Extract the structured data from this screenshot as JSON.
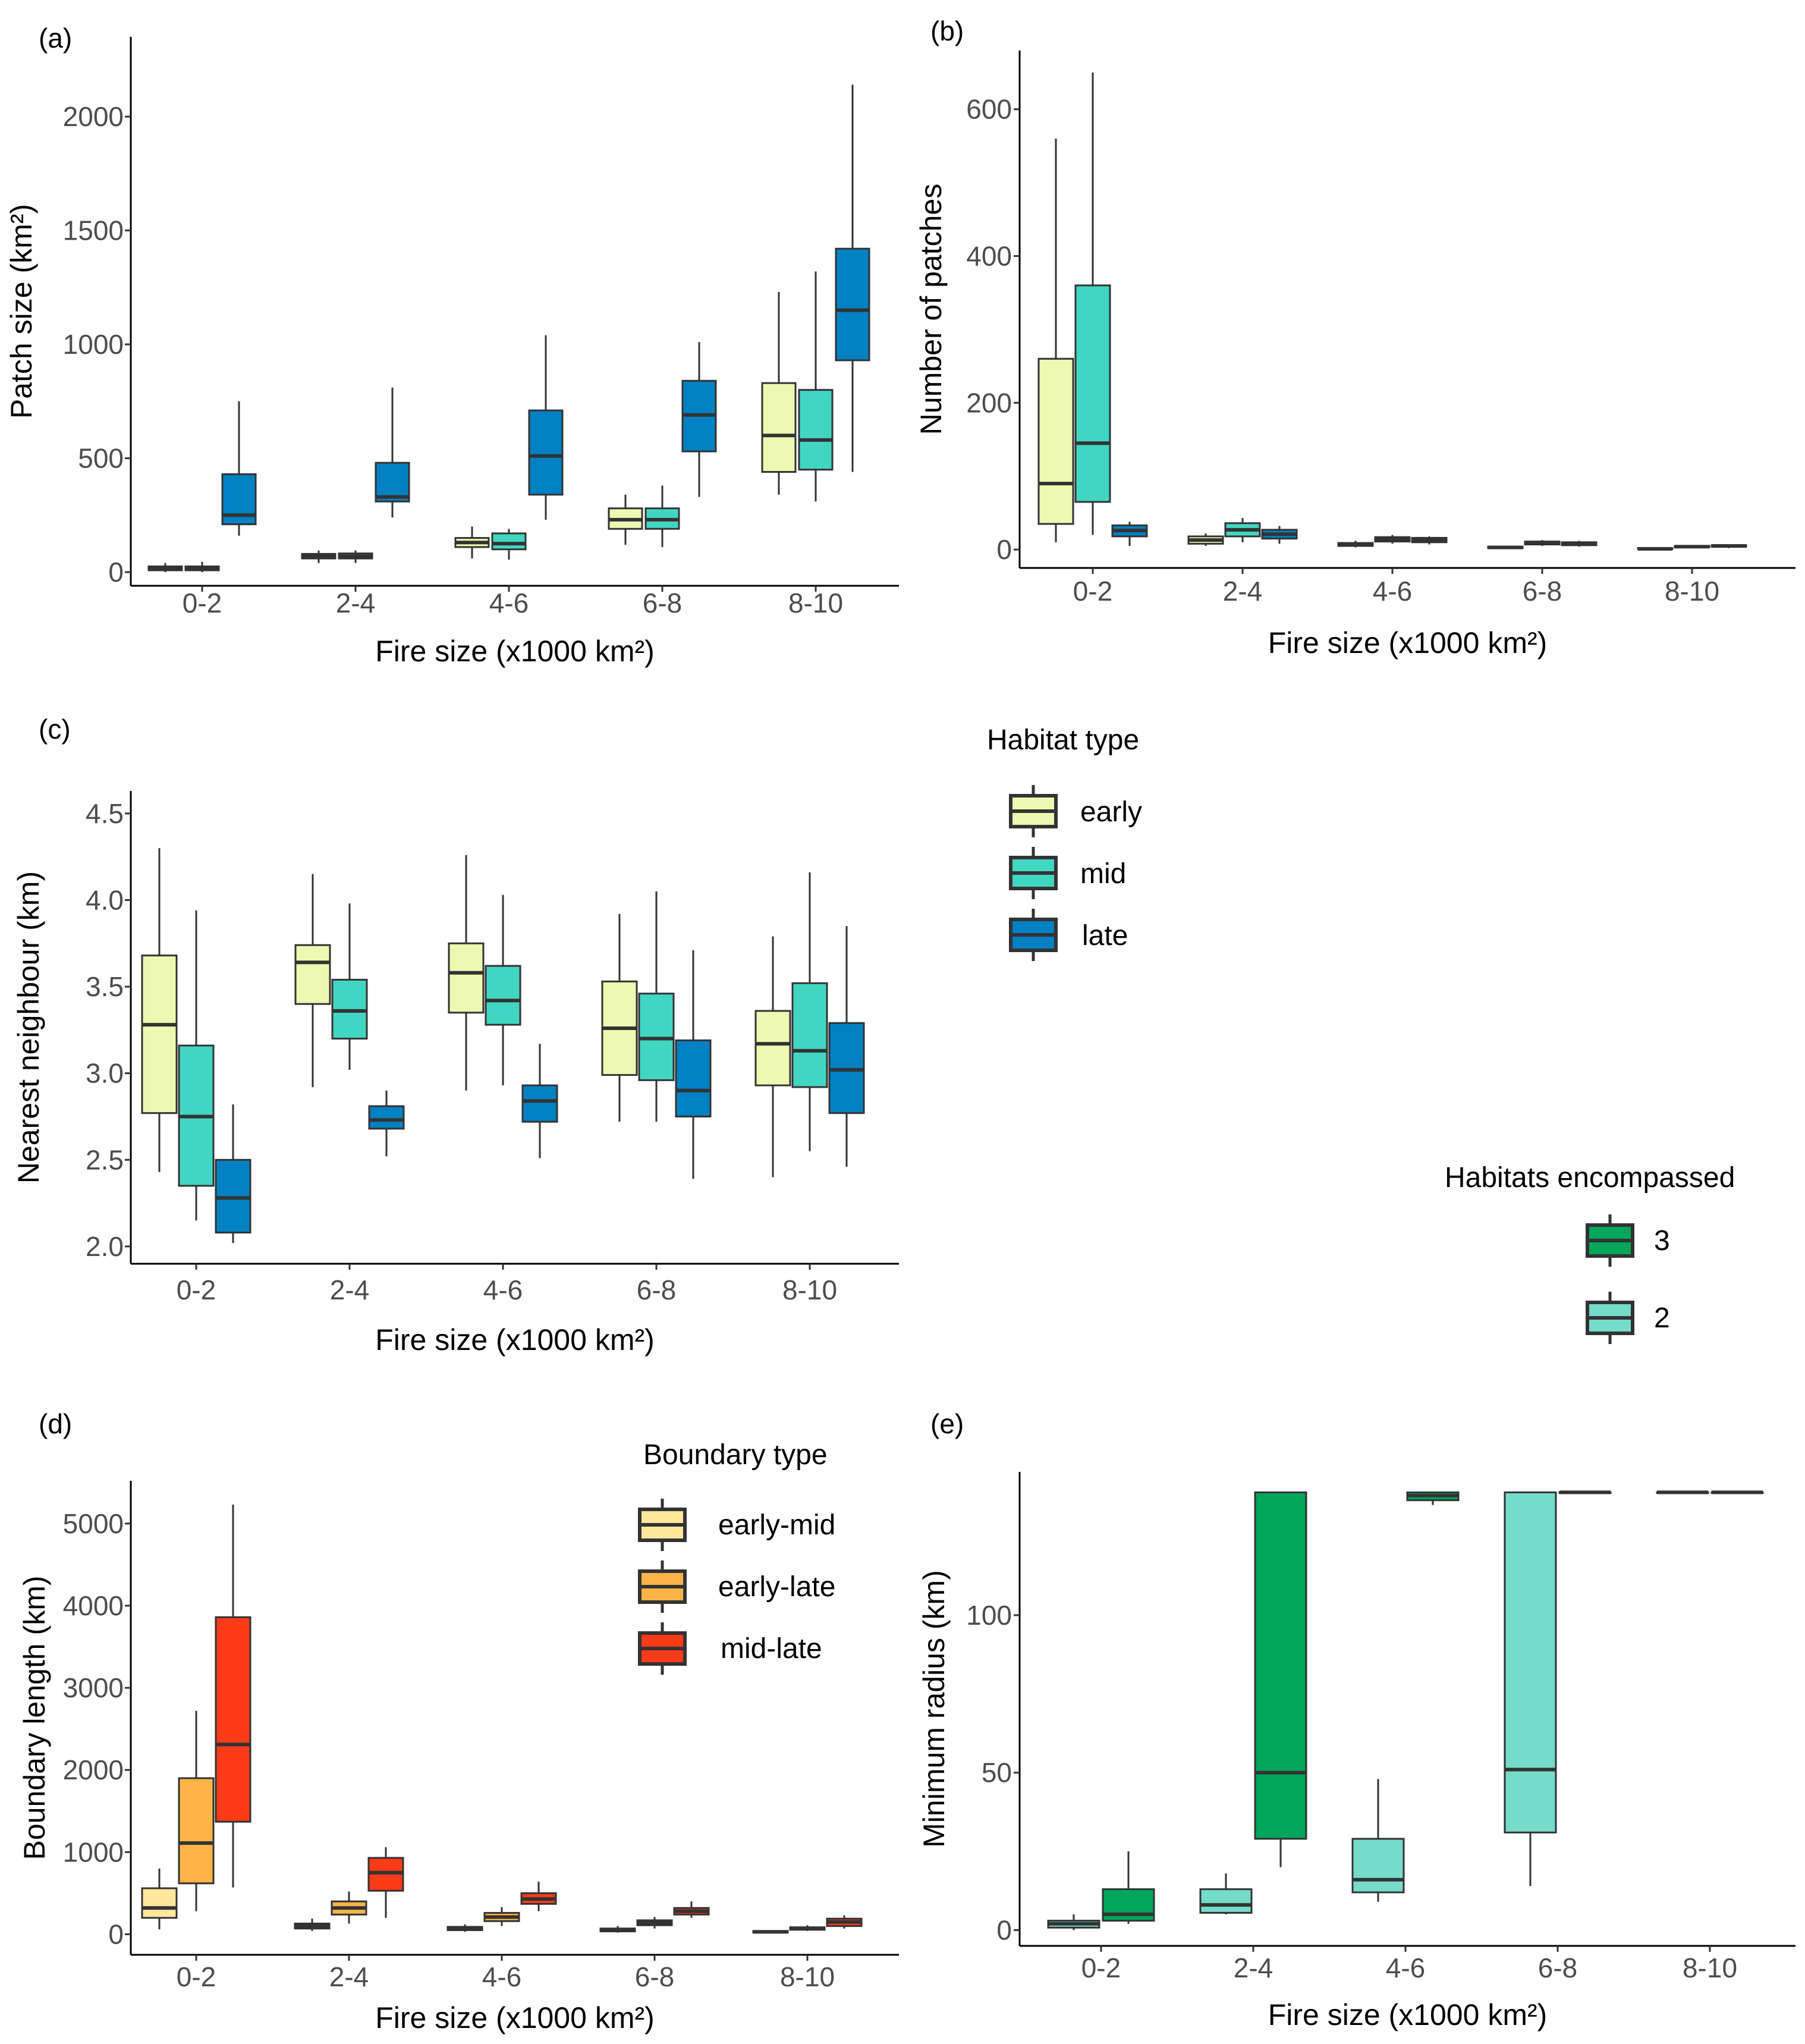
{
  "figure": {
    "colors": {
      "early": "#edf8b1",
      "mid": "#41d6c2",
      "late": "#0081c3",
      "hab3": "#00a65a",
      "hab2": "#74dcc8",
      "early-mid": "#ffe79b",
      "early-late": "#fdb447",
      "mid-late": "#fb3a17",
      "box_stroke": "#333333"
    }
  },
  "legends": {
    "habitat": {
      "title": "Habitat type",
      "items": [
        {
          "label": "early",
          "color": "#edf8b1"
        },
        {
          "label": "mid",
          "color": "#41d6c2"
        },
        {
          "label": "late",
          "color": "#0081c3"
        }
      ]
    },
    "encompassed": {
      "title": "Habitats encompassed",
      "items": [
        {
          "label": "3",
          "color": "#00a65a"
        },
        {
          "label": "2",
          "color": "#74dcc8"
        }
      ]
    },
    "boundary": {
      "title": "Boundary type",
      "items": [
        {
          "label": "early-mid",
          "color": "#ffe79b"
        },
        {
          "label": "early-late",
          "color": "#fdb447"
        },
        {
          "label": "mid-late",
          "color": "#fb3a17"
        }
      ]
    }
  },
  "chart_data": [
    {
      "id": "a",
      "panel_label": "(a)",
      "type": "boxplot",
      "xlabel": "Fire size (x1000 km²)",
      "ylabel": "Patch size (km²)",
      "categories": [
        "0-2",
        "2-4",
        "4-6",
        "6-8",
        "8-10"
      ],
      "yticks": [
        0,
        500,
        1000,
        1500,
        2000
      ],
      "ylim": [
        -60,
        2350
      ],
      "series": [
        {
          "name": "early",
          "boxes": [
            [
              0,
              8,
              15,
              25,
              40
            ],
            [
              40,
              60,
              70,
              80,
              95
            ],
            [
              60,
              110,
              130,
              150,
              200
            ],
            [
              120,
              190,
              230,
              280,
              340
            ],
            [
              340,
              440,
              600,
              830,
              1230
            ]
          ]
        },
        {
          "name": "mid",
          "boxes": [
            [
              0,
              8,
              15,
              25,
              45
            ],
            [
              40,
              60,
              70,
              82,
              95
            ],
            [
              55,
              100,
              125,
              170,
              190
            ],
            [
              110,
              190,
              230,
              280,
              380
            ],
            [
              310,
              450,
              580,
              800,
              1320
            ]
          ]
        },
        {
          "name": "late",
          "boxes": [
            [
              160,
              210,
              250,
              430,
              750
            ],
            [
              240,
              310,
              330,
              480,
              810
            ],
            [
              230,
              340,
              510,
              710,
              1040
            ],
            [
              330,
              530,
              690,
              840,
              1010
            ],
            [
              440,
              930,
              1150,
              1420,
              2140
            ]
          ]
        }
      ]
    },
    {
      "id": "b",
      "panel_label": "(b)",
      "type": "boxplot",
      "xlabel": "Fire size (x1000 km²)",
      "ylabel": "Number of patches",
      "categories": [
        "0-2",
        "2-4",
        "4-6",
        "6-8",
        "8-10"
      ],
      "yticks": [
        0,
        200,
        400,
        600
      ],
      "ylim": [
        -25,
        680
      ],
      "series": [
        {
          "name": "early",
          "boxes": [
            [
              10,
              35,
              90,
              260,
              560
            ],
            [
              5,
              8,
              13,
              18,
              22
            ],
            [
              3,
              5,
              7,
              9,
              12
            ],
            [
              1,
              2,
              3,
              4,
              5
            ],
            [
              0,
              1,
              1,
              2,
              3
            ]
          ]
        },
        {
          "name": "mid",
          "boxes": [
            [
              20,
              65,
              145,
              360,
              650
            ],
            [
              10,
              18,
              27,
              36,
              43
            ],
            [
              8,
              11,
              14,
              17,
              20
            ],
            [
              5,
              7,
              9,
              11,
              13
            ],
            [
              2,
              3,
              4,
              5,
              6
            ]
          ]
        },
        {
          "name": "late",
          "boxes": [
            [
              5,
              18,
              26,
              33,
              38
            ],
            [
              8,
              15,
              21,
              27,
              32
            ],
            [
              7,
              10,
              13,
              16,
              18
            ],
            [
              4,
              6,
              8,
              10,
              12
            ],
            [
              2,
              4,
              5,
              6,
              7
            ]
          ]
        }
      ]
    },
    {
      "id": "c",
      "panel_label": "(c)",
      "type": "boxplot",
      "xlabel": "Fire size (x1000 km²)",
      "ylabel": "Nearest neighbour (km)",
      "categories": [
        "0-2",
        "2-4",
        "4-6",
        "6-8",
        "8-10"
      ],
      "yticks": [
        2.0,
        2.5,
        3.0,
        3.5,
        4.0,
        4.5
      ],
      "ytick_labels": [
        "2.0",
        "2.5",
        "3.0",
        "3.5",
        "4.0",
        "4.5"
      ],
      "ylim": [
        1.9,
        4.63
      ],
      "series": [
        {
          "name": "early",
          "boxes": [
            [
              2.43,
              2.77,
              3.28,
              3.68,
              4.3
            ],
            [
              2.92,
              3.4,
              3.64,
              3.74,
              4.15
            ],
            [
              2.9,
              3.35,
              3.58,
              3.75,
              4.26
            ],
            [
              2.72,
              2.99,
              3.26,
              3.53,
              3.92
            ],
            [
              2.4,
              2.93,
              3.17,
              3.36,
              3.79
            ]
          ]
        },
        {
          "name": "mid",
          "boxes": [
            [
              2.15,
              2.35,
              2.75,
              3.16,
              3.94
            ],
            [
              3.02,
              3.2,
              3.36,
              3.54,
              3.98
            ],
            [
              2.93,
              3.28,
              3.42,
              3.62,
              4.03
            ],
            [
              2.72,
              2.96,
              3.2,
              3.46,
              4.05
            ],
            [
              2.55,
              2.92,
              3.13,
              3.52,
              4.16
            ]
          ]
        },
        {
          "name": "late",
          "boxes": [
            [
              2.02,
              2.08,
              2.28,
              2.5,
              2.82
            ],
            [
              2.52,
              2.68,
              2.73,
              2.81,
              2.9
            ],
            [
              2.51,
              2.72,
              2.84,
              2.93,
              3.17
            ],
            [
              2.39,
              2.75,
              2.9,
              3.19,
              3.71
            ],
            [
              2.46,
              2.77,
              3.02,
              3.29,
              3.85
            ]
          ]
        }
      ]
    },
    {
      "id": "d",
      "panel_label": "(d)",
      "type": "boxplot",
      "xlabel": "Fire size (x1000 km²)",
      "ylabel": "Boundary length (km)",
      "categories": [
        "0-2",
        "2-4",
        "4-6",
        "6-8",
        "8-10"
      ],
      "yticks": [
        0,
        1000,
        2000,
        3000,
        4000,
        5000
      ],
      "ylim": [
        -250,
        5520
      ],
      "series": [
        {
          "name": "early-mid",
          "boxes": [
            [
              60,
              200,
              320,
              560,
              800
            ],
            [
              40,
              70,
              100,
              130,
              190
            ],
            [
              30,
              50,
              70,
              90,
              120
            ],
            [
              20,
              35,
              50,
              70,
              100
            ],
            [
              15,
              20,
              30,
              40,
              50
            ]
          ]
        },
        {
          "name": "early-late",
          "boxes": [
            [
              280,
              620,
              1110,
              1900,
              2720
            ],
            [
              130,
              240,
              320,
              400,
              520
            ],
            [
              100,
              160,
              210,
              260,
              330
            ],
            [
              70,
              110,
              140,
              170,
              210
            ],
            [
              40,
              55,
              70,
              85,
              110
            ]
          ]
        },
        {
          "name": "mid-late",
          "boxes": [
            [
              570,
              1370,
              2310,
              3860,
              5230
            ],
            [
              200,
              530,
              750,
              930,
              1060
            ],
            [
              280,
              370,
              430,
              500,
              640
            ],
            [
              200,
              240,
              280,
              320,
              400
            ],
            [
              70,
              100,
              150,
              190,
              230
            ]
          ]
        }
      ]
    },
    {
      "id": "e",
      "panel_label": "(e)",
      "type": "boxplot",
      "xlabel": "Fire size (x1000 km²)",
      "ylabel": "Minimum radius (km)",
      "categories": [
        "0-2",
        "2-4",
        "4-6",
        "6-8",
        "8-10"
      ],
      "yticks": [
        0,
        50,
        100
      ],
      "ylim": [
        -5,
        145.5
      ],
      "series": [
        {
          "name": "2",
          "boxes": [
            [
              0,
              0.8,
              2,
              3,
              5
            ],
            [
              5,
              5.5,
              8,
              13,
              18
            ],
            [
              9,
              12,
              16,
              29,
              48
            ],
            [
              14,
              31,
              51,
              139,
              139
            ],
            null
          ]
        },
        {
          "name": "3",
          "boxes": [
            [
              2,
              3,
              5,
              13,
              25
            ],
            [
              20,
              29,
              50,
              139,
              139
            ],
            [
              135,
              136.5,
              138,
              139,
              139
            ],
            [
              139,
              139,
              139,
              139,
              139
            ],
            [
              139,
              139,
              139,
              139,
              139
            ]
          ]
        }
      ],
      "special_boxes": {
        "8-10_2": [
          139,
          139,
          139,
          139,
          139
        ]
      }
    }
  ]
}
